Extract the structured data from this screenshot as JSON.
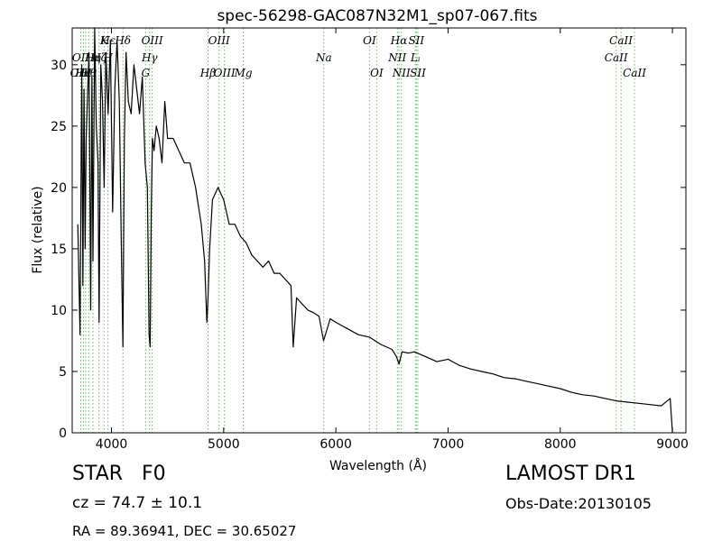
{
  "chart_data": {
    "type": "line",
    "title": "spec-56298-GAC087N32M1_sp07-067.fits",
    "xlabel": "Wavelength (Å)",
    "ylabel": "Flux (relative)",
    "xlim": [
      3650,
      9120
    ],
    "ylim": [
      0,
      33
    ],
    "xticks": [
      4000,
      5000,
      6000,
      7000,
      8000,
      9000
    ],
    "yticks": [
      0,
      5,
      10,
      15,
      20,
      25,
      30
    ],
    "grid": false,
    "line_color": "#000000",
    "marker_color": "#5fc05f",
    "series": [
      {
        "x": [
          3700,
          3720,
          3735,
          3745,
          3755,
          3765,
          3775,
          3785,
          3800,
          3815,
          3825,
          3835,
          3850,
          3865,
          3880,
          3890,
          3905,
          3920,
          3935,
          3950,
          3970,
          3990,
          4010,
          4030,
          4050,
          4070,
          4090,
          4102,
          4115,
          4130,
          4150,
          4175,
          4200,
          4225,
          4250,
          4275,
          4300,
          4320,
          4335,
          4345,
          4355,
          4365,
          4380,
          4400,
          4425,
          4450,
          4475,
          4500,
          4550,
          4600,
          4650,
          4700,
          4750,
          4800,
          4830,
          4850,
          4861,
          4875,
          4900,
          4950,
          5000,
          5050,
          5100,
          5150,
          5200,
          5250,
          5300,
          5350,
          5400,
          5450,
          5500,
          5550,
          5600,
          5620,
          5650,
          5700,
          5750,
          5800,
          5850,
          5890,
          5950,
          6000,
          6100,
          6200,
          6300,
          6400,
          6500,
          6540,
          6563,
          6590,
          6650,
          6700,
          6800,
          6900,
          7000,
          7100,
          7200,
          7300,
          7400,
          7500,
          7600,
          7700,
          7800,
          7900,
          8000,
          8100,
          8200,
          8300,
          8400,
          8500,
          8600,
          8700,
          8800,
          8900,
          8980,
          9000
        ],
        "y": [
          17,
          8,
          30,
          12,
          28,
          15,
          24,
          27,
          31,
          10,
          29,
          14,
          33,
          25,
          22,
          9,
          30,
          27,
          20,
          31,
          26,
          32,
          18,
          28,
          32,
          27,
          14,
          7,
          24,
          31,
          27,
          26,
          30,
          28,
          26,
          29,
          22,
          20,
          8,
          7,
          18,
          24,
          23,
          25,
          24,
          22,
          27,
          24,
          24,
          23,
          22,
          22,
          20,
          17,
          14,
          9,
          11,
          15,
          19,
          20,
          19,
          17,
          17,
          16,
          15.5,
          14.5,
          14,
          13.5,
          14,
          13,
          13,
          12.5,
          12,
          7,
          11,
          10.5,
          10,
          9.8,
          9.5,
          7.5,
          9.3,
          9,
          8.5,
          8,
          7.8,
          7.2,
          6.8,
          6.2,
          5.6,
          6.6,
          6.5,
          6.6,
          6.2,
          5.8,
          6,
          5.5,
          5.2,
          5,
          4.8,
          4.5,
          4.4,
          4.2,
          4,
          3.8,
          3.6,
          3.3,
          3.1,
          3,
          2.8,
          2.6,
          2.5,
          2.4,
          2.3,
          2.2,
          2.8,
          0
        ]
      }
    ],
    "spectral_lines": [
      {
        "label": "Hδ",
        "wavelength": 4102,
        "row": 1
      },
      {
        "label": "K",
        "wavelength": 3934,
        "row": 1
      },
      {
        "label": "Hε",
        "wavelength": 3970,
        "row": 1
      },
      {
        "label": "OIII",
        "wavelength": 4363,
        "row": 1
      },
      {
        "label": "OIII",
        "wavelength": 4959,
        "row": 1
      },
      {
        "label": "OI",
        "wavelength": 6300,
        "row": 1
      },
      {
        "label": "Hα",
        "wavelength": 6563,
        "row": 1
      },
      {
        "label": "SII",
        "wavelength": 6717,
        "row": 1
      },
      {
        "label": "CaII",
        "wavelength": 8542,
        "row": 1
      },
      {
        "label": "OII",
        "wavelength": 3727,
        "row": 2
      },
      {
        "label": "Hη",
        "wavelength": 3835,
        "row": 2
      },
      {
        "label": "Hζ",
        "wavelength": 3889,
        "row": 2
      },
      {
        "label": "H",
        "wavelength": 3969,
        "row": 2
      },
      {
        "label": "Hγ",
        "wavelength": 4340,
        "row": 2
      },
      {
        "label": "Na",
        "wavelength": 5893,
        "row": 2
      },
      {
        "label": "NII",
        "wavelength": 6548,
        "row": 2
      },
      {
        "label": "Lᵢ",
        "wavelength": 6708,
        "row": 2
      },
      {
        "label": "CaII",
        "wavelength": 8498,
        "row": 2
      },
      {
        "label": "OIII",
        "wavelength": 3727,
        "row": 3
      },
      {
        "label": "Hθ",
        "wavelength": 3797,
        "row": 3
      },
      {
        "label": "Hκ",
        "wavelength": 3750,
        "row": 3
      },
      {
        "label": "G",
        "wavelength": 4305,
        "row": 3
      },
      {
        "label": "Hβ",
        "wavelength": 4861,
        "row": 3
      },
      {
        "label": "Mg",
        "wavelength": 5175,
        "row": 3
      },
      {
        "label": "OIII",
        "wavelength": 5007,
        "row": 3
      },
      {
        "label": "OI",
        "wavelength": 6364,
        "row": 3
      },
      {
        "label": "NII",
        "wavelength": 6584,
        "row": 3
      },
      {
        "label": "SII",
        "wavelength": 6731,
        "row": 3
      },
      {
        "label": "CaII",
        "wavelength": 8662,
        "row": 3
      }
    ],
    "marker_wavelengths": [
      3727,
      3750,
      3771,
      3797,
      3835,
      3889,
      3934,
      3969,
      4102,
      4305,
      4340,
      4363,
      4861,
      4959,
      5007,
      5175,
      5893,
      6300,
      6364,
      6548,
      6563,
      6584,
      6708,
      6717,
      6731,
      8498,
      8542,
      8662
    ]
  },
  "info": {
    "class": "STAR",
    "subclass": "F0",
    "survey": "LAMOST DR1",
    "cz": "cz = 74.7 ± 10.1",
    "obs_date": "Obs-Date:20130105",
    "radec": "RA = 89.36941, DEC = 30.65027"
  }
}
